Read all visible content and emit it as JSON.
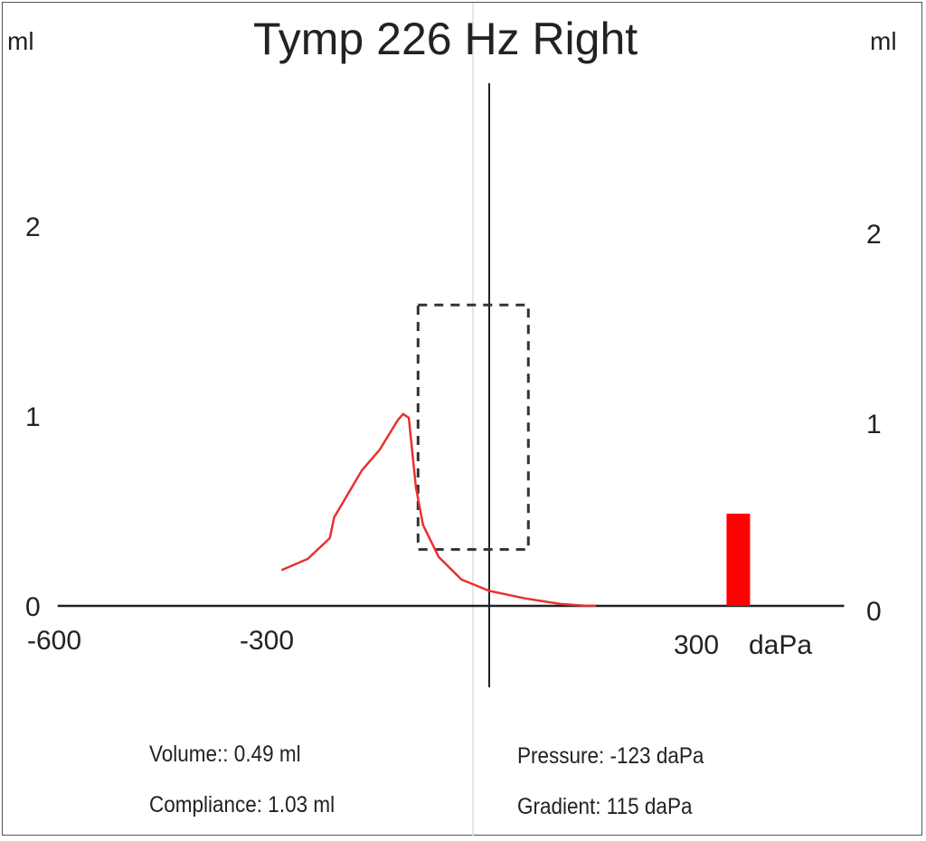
{
  "chart_data": {
    "type": "line",
    "title": "Tymp 226 Hz Right",
    "xlabel": "daPa",
    "ylabel_left": "ml",
    "ylabel_right": "ml",
    "xlim": [
      -600,
      500
    ],
    "ylim": [
      0,
      2.8
    ],
    "x_ticks": [
      "-600",
      "-300",
      "300"
    ],
    "x_tick_values": [
      -600,
      -300,
      300
    ],
    "x_unit_label": "daPa",
    "y_ticks_left": [
      "0",
      "1",
      "2"
    ],
    "y_ticks_right": [
      "0",
      "1",
      "2"
    ],
    "y_tick_values": [
      0,
      1,
      2
    ],
    "series": [
      {
        "name": "tympanogram",
        "color": "#e83030",
        "x": [
          -292,
          -255,
          -224,
          -218,
          -179,
          -154,
          -128,
          -121,
          -113,
          -103,
          -93,
          -71,
          -39,
          0,
          50,
          100,
          138,
          150
        ],
        "y": [
          0.19,
          0.25,
          0.36,
          0.47,
          0.72,
          0.83,
          0.99,
          1.02,
          1.0,
          0.63,
          0.43,
          0.26,
          0.14,
          0.08,
          0.04,
          0.01,
          0.0,
          0.0
        ]
      }
    ],
    "normal_region": {
      "x": [
        -100,
        55
      ],
      "y": [
        0.3,
        1.6
      ]
    },
    "volume_bar": {
      "x": 350,
      "value": 0.49,
      "color": "#ff0000"
    }
  },
  "stats": {
    "volume": "Volume:: 0.49 ml",
    "compliance": "Compliance: 1.03 ml",
    "pressure": "Pressure: -123 daPa",
    "gradient": "Gradient: 115 daPa"
  }
}
